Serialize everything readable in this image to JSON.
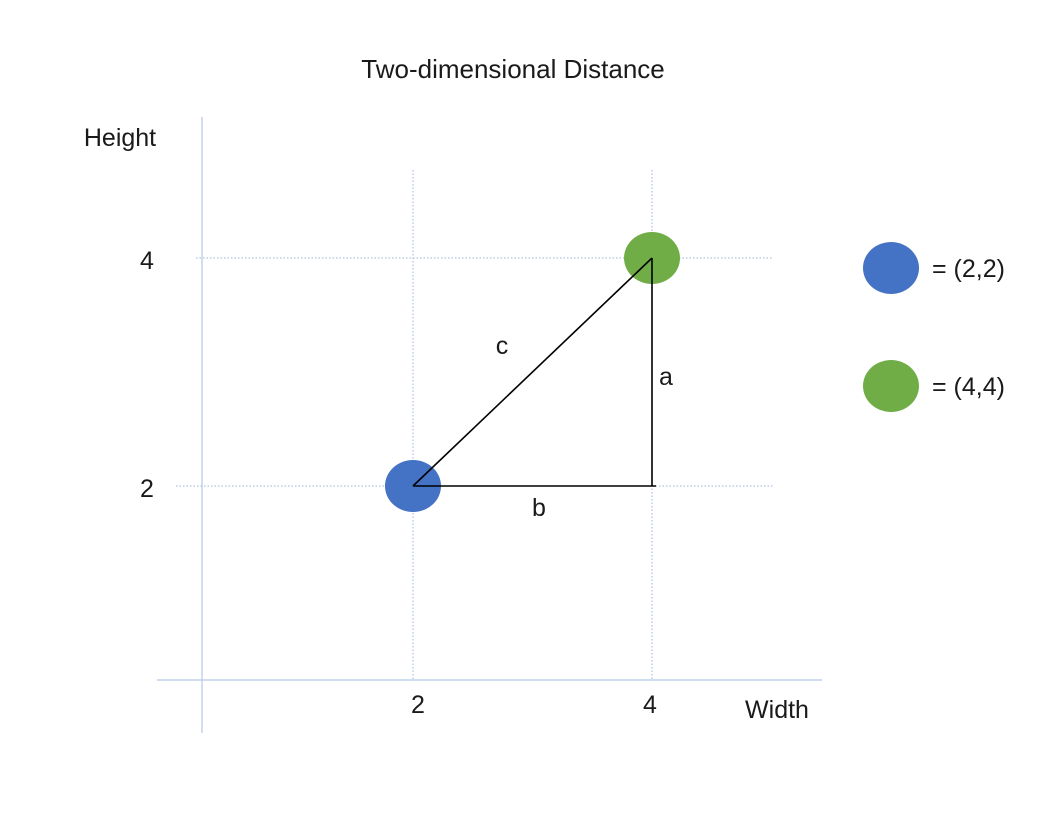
{
  "title": "Two-dimensional Distance",
  "x_axis_label": "Width",
  "y_axis_label": "Height",
  "x_ticks": [
    "2",
    "4"
  ],
  "y_ticks": [
    "4",
    "2"
  ],
  "points": [
    {
      "label": "(2,2)",
      "x": 2,
      "y": 2,
      "color": "#4472c4"
    },
    {
      "label": "(4,4)",
      "x": 4,
      "y": 4,
      "color": "#70ad47"
    }
  ],
  "side_labels": {
    "hypotenuse": "c",
    "vertical": "a",
    "horizontal": "b"
  },
  "legend": [
    {
      "text": "= (2,2)",
      "color": "#4472c4"
    },
    {
      "text": "= (4,4)",
      "color": "#70ad47"
    }
  ],
  "colors": {
    "axis": "#b4c7e7",
    "gridline": "#9db3d9",
    "triangle": "#000000"
  }
}
